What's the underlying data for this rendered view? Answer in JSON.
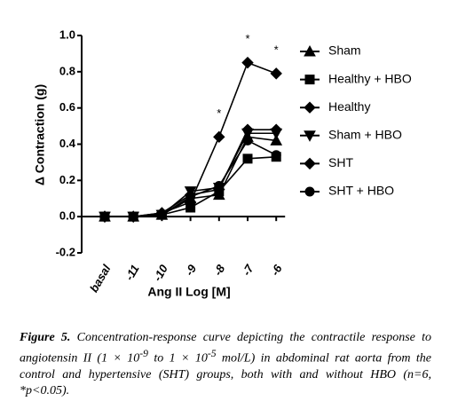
{
  "chart_data": {
    "type": "line",
    "ylabel": "Δ Contraction (g)",
    "xlabel": "Ang II Log [M]",
    "categories": [
      "basal",
      "-11",
      "-10",
      "-9",
      "-8",
      "-7",
      "-6"
    ],
    "series": [
      {
        "name": "Sham",
        "color": "#000000",
        "marker": "triangle-up",
        "values": [
          0,
          0,
          0.01,
          0.1,
          0.12,
          0.44,
          0.42
        ]
      },
      {
        "name": "Healthy + HBO",
        "color": "#000000",
        "marker": "square",
        "values": [
          0,
          0,
          0.01,
          0.05,
          0.14,
          0.32,
          0.33
        ]
      },
      {
        "name": "Healthy",
        "color": "#000000",
        "marker": "diamond",
        "values": [
          0,
          0,
          0.02,
          0.08,
          0.44,
          0.85,
          0.79
        ]
      },
      {
        "name": "Sham + HBO",
        "color": "#000000",
        "marker": "triangle-down",
        "values": [
          0,
          0,
          0.01,
          0.14,
          0.16,
          0.46,
          0.46
        ]
      },
      {
        "name": "SHT",
        "color": "#000000",
        "marker": "diamond",
        "values": [
          0,
          0,
          0.02,
          0.12,
          0.15,
          0.48,
          0.48
        ]
      },
      {
        "name": "SHT + HBO",
        "color": "#000000",
        "marker": "circle",
        "values": [
          0,
          0,
          0.01,
          0.11,
          0.17,
          0.42,
          0.34
        ]
      }
    ],
    "annotations": [
      "*",
      "*",
      "*"
    ],
    "ylim": [
      -0.2,
      1.0
    ],
    "yticks": [
      -0.2,
      {
        "value": 0,
        "label": "0.0"
      },
      0.2,
      0.4,
      0.6,
      0.8,
      {
        "value": 1,
        "label": "1.0"
      }
    ]
  },
  "caption": {
    "label": "Figure 5.",
    "parts": [
      "Concentration-response curve depicting the contractile response to angiotensin II (1 × 10",
      "-9",
      " to 1 × 10",
      "-5",
      " mol/L) in abdominal rat aorta from the control and hypertensive (SHT) groups, both with and without HBO (n=6, *p<0.05)."
    ]
  }
}
